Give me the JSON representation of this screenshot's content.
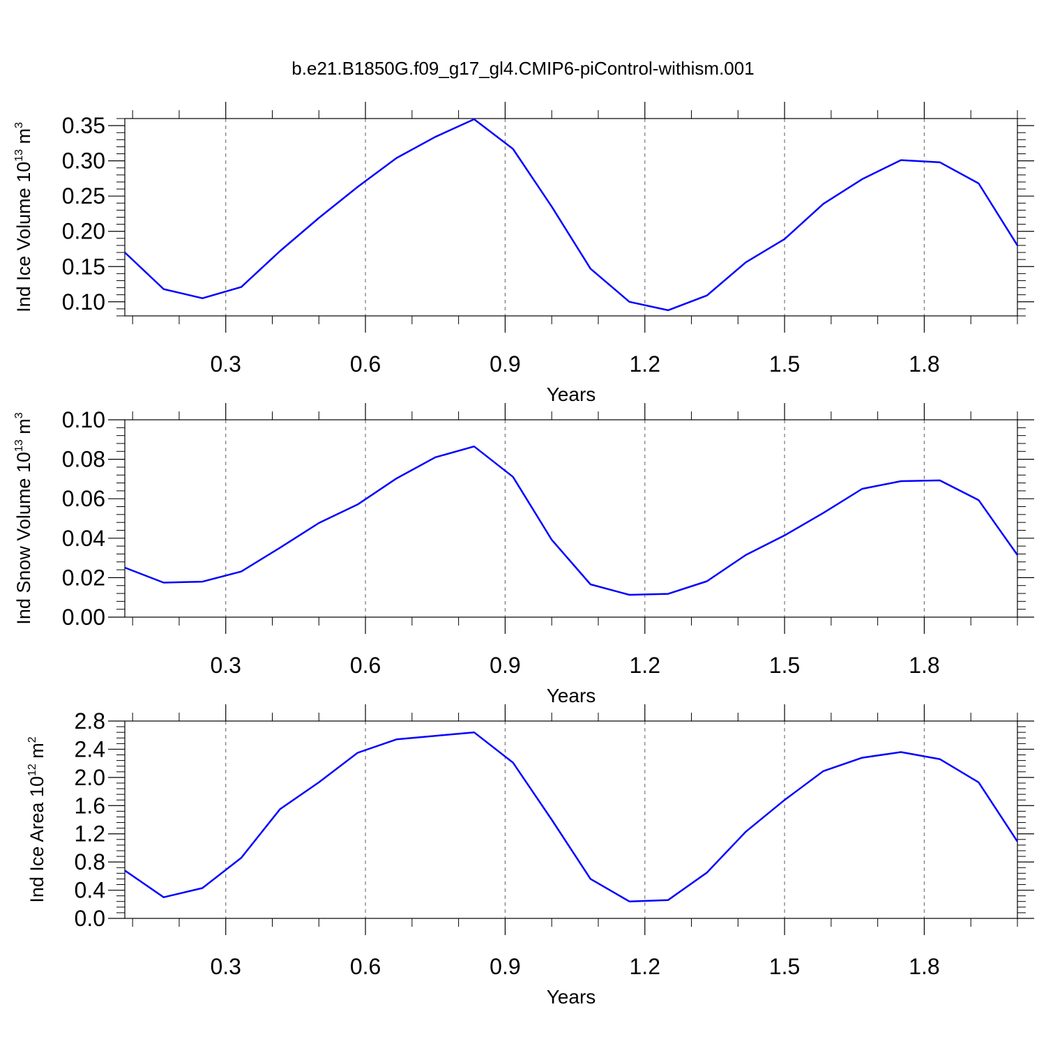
{
  "figure": {
    "title": "b.e21.B1850G.f09_g17_gl4.CMIP6-piControl-withism.001"
  },
  "style": {
    "line_color": "#0000ff",
    "grid_color": "#777777",
    "axis_color": "#000000"
  },
  "chart_data": [
    {
      "type": "line",
      "xlabel": "Years",
      "ylabel_parts": {
        "main": "Ind Ice Volume 10",
        "exp": "13",
        "unit": " m",
        "unit_exp": "3"
      },
      "xlim": [
        0.0833,
        2.0
      ],
      "ylim": [
        0.08,
        0.36
      ],
      "xticks": [
        0.3,
        0.6,
        0.9,
        1.2,
        1.5,
        1.8
      ],
      "xtick_labels": [
        "0.3",
        "0.6",
        "0.9",
        "1.2",
        "1.5",
        "1.8"
      ],
      "yticks": [
        0.1,
        0.15,
        0.2,
        0.25,
        0.3,
        0.35
      ],
      "ytick_labels": [
        "0.10",
        "0.15",
        "0.20",
        "0.25",
        "0.30",
        "0.35"
      ],
      "y_minor_step": 0.01,
      "grid": "vertical dashed at x ticks",
      "x": [
        0.0833,
        0.1667,
        0.25,
        0.3333,
        0.4167,
        0.5,
        0.5833,
        0.6667,
        0.75,
        0.8333,
        0.9167,
        1.0,
        1.0833,
        1.1667,
        1.25,
        1.3333,
        1.4167,
        1.5,
        1.5833,
        1.6667,
        1.75,
        1.8333,
        1.9167,
        2.0
      ],
      "y": [
        0.17,
        0.118,
        0.105,
        0.121,
        0.172,
        0.219,
        0.263,
        0.304,
        0.334,
        0.359,
        0.317,
        0.235,
        0.147,
        0.1,
        0.088,
        0.109,
        0.156,
        0.189,
        0.239,
        0.274,
        0.301,
        0.298,
        0.268,
        0.18
      ]
    },
    {
      "type": "line",
      "xlabel": "Years",
      "ylabel_parts": {
        "main": "Ind Snow Volume 10",
        "exp": "13",
        "unit": " m",
        "unit_exp": "3"
      },
      "xlim": [
        0.0833,
        2.0
      ],
      "ylim": [
        0.0,
        0.1
      ],
      "xticks": [
        0.3,
        0.6,
        0.9,
        1.2,
        1.5,
        1.8
      ],
      "xtick_labels": [
        "0.3",
        "0.6",
        "0.9",
        "1.2",
        "1.5",
        "1.8"
      ],
      "yticks": [
        0.0,
        0.02,
        0.04,
        0.06,
        0.08,
        0.1
      ],
      "ytick_labels": [
        "0.00",
        "0.02",
        "0.04",
        "0.06",
        "0.08",
        "0.10"
      ],
      "y_minor_step": 0.004,
      "grid": "vertical dashed at x ticks",
      "x": [
        0.0833,
        0.1667,
        0.25,
        0.3333,
        0.4167,
        0.5,
        0.5833,
        0.6667,
        0.75,
        0.8333,
        0.9167,
        1.0,
        1.0833,
        1.1667,
        1.25,
        1.3333,
        1.4167,
        1.5,
        1.5833,
        1.6667,
        1.75,
        1.8333,
        1.9167,
        2.0
      ],
      "y": [
        0.0251,
        0.0175,
        0.018,
        0.0231,
        0.0352,
        0.0477,
        0.0571,
        0.0703,
        0.081,
        0.0865,
        0.0711,
        0.0392,
        0.0166,
        0.0113,
        0.0118,
        0.0182,
        0.0315,
        0.0414,
        0.0528,
        0.065,
        0.0689,
        0.0693,
        0.0593,
        0.0315
      ]
    },
    {
      "type": "line",
      "xlabel": "Years",
      "ylabel_parts": {
        "main": "Ind Ice Area 10",
        "exp": "12",
        "unit": " m",
        "unit_exp": "2"
      },
      "xlim": [
        0.0833,
        2.0
      ],
      "ylim": [
        0.0,
        2.8
      ],
      "xticks": [
        0.3,
        0.6,
        0.9,
        1.2,
        1.5,
        1.8
      ],
      "xtick_labels": [
        "0.3",
        "0.6",
        "0.9",
        "1.2",
        "1.5",
        "1.8"
      ],
      "yticks": [
        0.0,
        0.4,
        0.8,
        1.2,
        1.6,
        2.0,
        2.4,
        2.8
      ],
      "ytick_labels": [
        "0.0",
        "0.4",
        "0.8",
        "1.2",
        "1.6",
        "2.0",
        "2.4",
        "2.8"
      ],
      "y_minor_step": 0.08,
      "grid": "vertical dashed at x ticks",
      "x": [
        0.0833,
        0.1667,
        0.25,
        0.3333,
        0.4167,
        0.5,
        0.5833,
        0.6667,
        0.75,
        0.8333,
        0.9167,
        1.0,
        1.0833,
        1.1667,
        1.25,
        1.3333,
        1.4167,
        1.5,
        1.5833,
        1.6667,
        1.75,
        1.8333,
        1.9167,
        2.0
      ],
      "y": [
        0.68,
        0.3,
        0.43,
        0.86,
        1.55,
        1.93,
        2.35,
        2.54,
        2.59,
        2.64,
        2.21,
        1.4,
        0.56,
        0.24,
        0.26,
        0.65,
        1.23,
        1.68,
        2.09,
        2.28,
        2.36,
        2.26,
        1.93,
        1.09
      ]
    }
  ]
}
